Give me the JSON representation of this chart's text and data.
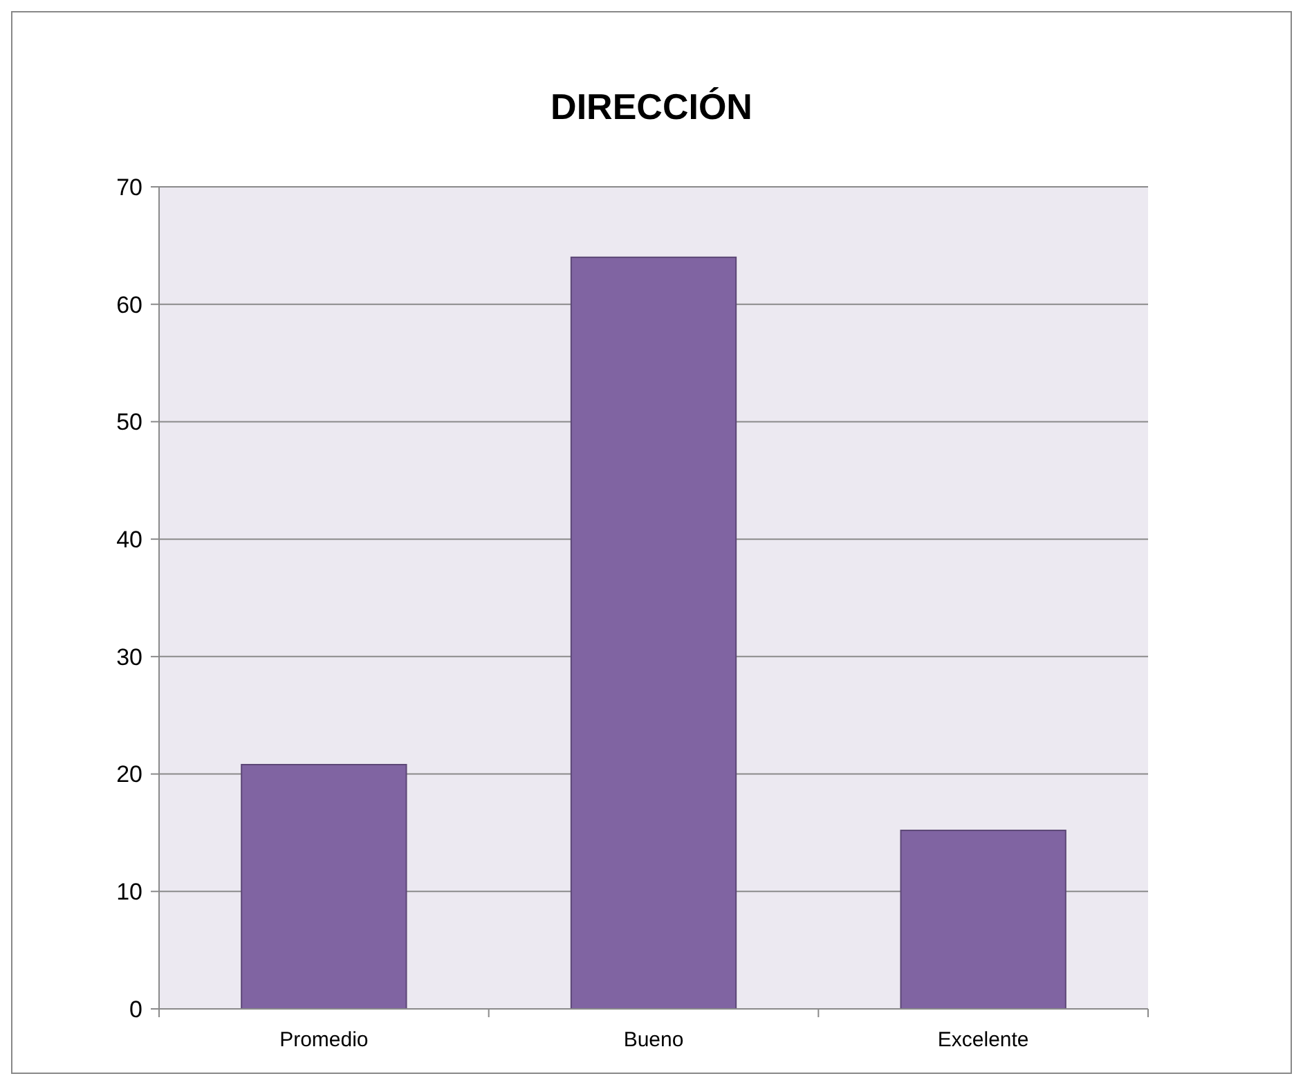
{
  "chart_data": {
    "type": "bar",
    "title": "DIRECCIÓN",
    "categories": [
      "Promedio",
      "Bueno",
      "Excelente"
    ],
    "values": [
      20.8,
      64,
      15.2
    ],
    "color": "#8064a2",
    "ylim": [
      0,
      70
    ],
    "yticks": [
      0,
      10,
      20,
      30,
      40,
      50,
      60,
      70
    ],
    "grid": "y"
  }
}
